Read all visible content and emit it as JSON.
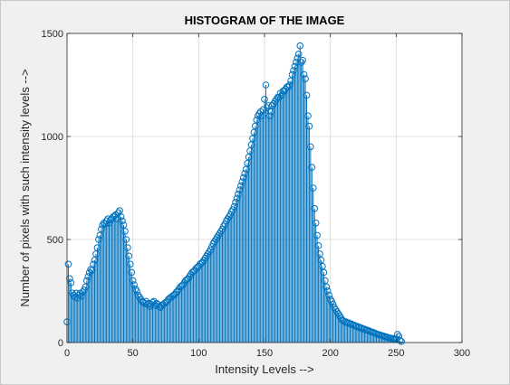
{
  "chart_data": {
    "type": "stem",
    "title": "HISTOGRAM OF THE IMAGE",
    "xlabel": "Intensity Levels  -->",
    "ylabel": "Number of pixels with such intensity levels -->",
    "xlim": [
      0,
      300
    ],
    "ylim": [
      0,
      1500
    ],
    "xticks": [
      0,
      50,
      100,
      150,
      200,
      250,
      300
    ],
    "yticks": [
      0,
      500,
      1000,
      1500
    ],
    "grid": true,
    "color": "#0072bd",
    "x_range": [
      0,
      255
    ],
    "values": [
      100,
      380,
      310,
      290,
      240,
      230,
      220,
      240,
      215,
      230,
      240,
      225,
      245,
      255,
      270,
      300,
      320,
      340,
      355,
      350,
      380,
      400,
      430,
      460,
      500,
      520,
      550,
      570,
      580,
      575,
      590,
      600,
      580,
      595,
      600,
      610,
      615,
      620,
      600,
      630,
      640,
      610,
      590,
      570,
      540,
      500,
      460,
      420,
      380,
      340,
      300,
      280,
      260,
      250,
      230,
      220,
      210,
      200,
      195,
      190,
      200,
      185,
      190,
      175,
      185,
      195,
      200,
      180,
      190,
      185,
      175,
      170,
      180,
      185,
      190,
      195,
      200,
      210,
      215,
      220,
      225,
      230,
      235,
      245,
      250,
      260,
      270,
      275,
      280,
      290,
      300,
      305,
      310,
      320,
      330,
      340,
      345,
      350,
      360,
      365,
      370,
      380,
      385,
      390,
      400,
      410,
      420,
      430,
      440,
      450,
      465,
      480,
      490,
      500,
      510,
      520,
      530,
      540,
      550,
      565,
      575,
      590,
      600,
      610,
      620,
      635,
      645,
      660,
      680,
      700,
      720,
      740,
      760,
      780,
      800,
      820,
      840,
      870,
      900,
      930,
      960,
      990,
      1020,
      1050,
      1080,
      1100,
      1110,
      1120,
      1100,
      1130,
      1180,
      1250,
      1140,
      1150,
      1100,
      1120,
      1150,
      1160,
      1170,
      1180,
      1190,
      1190,
      1210,
      1200,
      1220,
      1220,
      1230,
      1240,
      1240,
      1250,
      1270,
      1300,
      1320,
      1340,
      1360,
      1380,
      1400,
      1440,
      1360,
      1370,
      1300,
      1280,
      1200,
      1100,
      1050,
      950,
      850,
      750,
      650,
      580,
      520,
      470,
      430,
      400,
      370,
      340,
      300,
      270,
      250,
      230,
      210,
      200,
      185,
      170,
      160,
      150,
      140,
      130,
      120,
      110,
      105,
      100,
      100,
      95,
      95,
      90,
      90,
      85,
      85,
      80,
      80,
      75,
      75,
      70,
      70,
      65,
      65,
      60,
      60,
      58,
      55,
      52,
      50,
      48,
      45,
      42,
      40,
      38,
      36,
      34,
      32,
      30,
      28,
      26,
      24,
      22,
      20,
      20,
      18,
      16,
      15,
      40,
      30,
      10,
      5
    ]
  }
}
